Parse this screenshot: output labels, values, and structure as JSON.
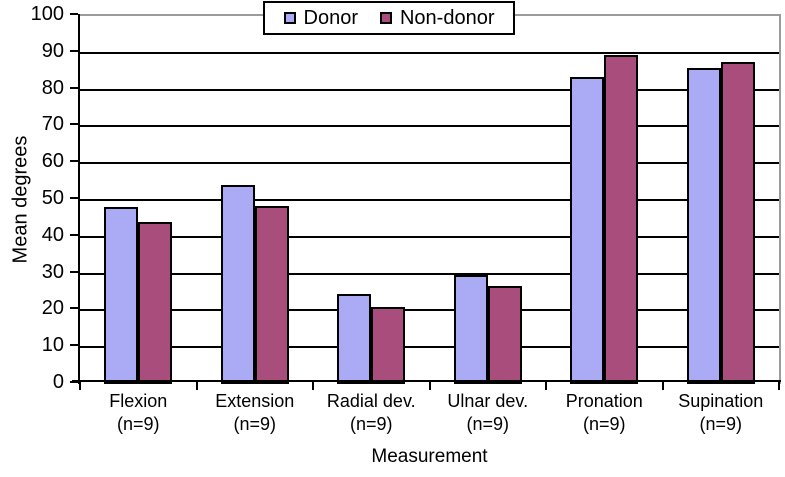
{
  "chart_data": {
    "type": "bar",
    "title": "",
    "categories": [
      "Flexion",
      "Extension",
      "Radial dev.",
      "Ulnar dev.",
      "Pronation",
      "Supination"
    ],
    "category_sublabels": [
      "(n=9)",
      "(n=9)",
      "(n=9)",
      "(n=9)",
      "(n=9)",
      "(n=9)"
    ],
    "series": [
      {
        "name": "Donor",
        "color": "#aaaaf5",
        "values": [
          48,
          54,
          24.5,
          29.5,
          83.5,
          86
        ]
      },
      {
        "name": "Non-donor",
        "color": "#a84d7c",
        "values": [
          44,
          48.5,
          21,
          26.5,
          89.5,
          87.5
        ]
      }
    ],
    "xlabel": "Measurement",
    "ylabel": "Mean degrees",
    "ylim": [
      0,
      100
    ],
    "ytick_step": 10,
    "yticks": [
      0,
      10,
      20,
      30,
      40,
      50,
      60,
      70,
      80,
      90,
      100
    ],
    "grid": true,
    "legend_position": "top-center",
    "colors": {
      "bar_border": "#000000",
      "gridline": "#000000",
      "plot_border": "#9b9b9b",
      "axis": "#000000",
      "text": "#000000",
      "background": "#ffffff"
    }
  }
}
